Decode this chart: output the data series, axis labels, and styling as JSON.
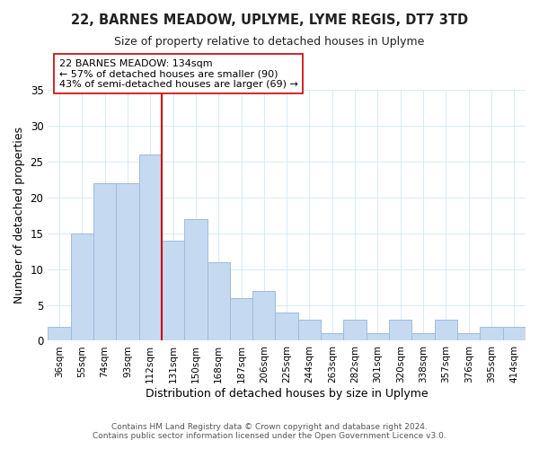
{
  "title": "22, BARNES MEADOW, UPLYME, LYME REGIS, DT7 3TD",
  "subtitle": "Size of property relative to detached houses in Uplyme",
  "xlabel": "Distribution of detached houses by size in Uplyme",
  "ylabel": "Number of detached properties",
  "bar_labels": [
    "36sqm",
    "55sqm",
    "74sqm",
    "93sqm",
    "112sqm",
    "131sqm",
    "150sqm",
    "168sqm",
    "187sqm",
    "206sqm",
    "225sqm",
    "244sqm",
    "263sqm",
    "282sqm",
    "301sqm",
    "320sqm",
    "338sqm",
    "357sqm",
    "376sqm",
    "395sqm",
    "414sqm"
  ],
  "bar_values": [
    2,
    15,
    22,
    22,
    26,
    14,
    17,
    11,
    6,
    7,
    4,
    3,
    1,
    3,
    1,
    3,
    1,
    3,
    1,
    2,
    2
  ],
  "bar_color": "#c5d9f0",
  "bar_edgecolor": "#a0bbdc",
  "vline_index": 5,
  "vline_color": "#cc0000",
  "annotation_title": "22 BARNES MEADOW: 134sqm",
  "annotation_line1": "← 57% of detached houses are smaller (90)",
  "annotation_line2": "43% of semi-detached houses are larger (69) →",
  "annotation_box_edgecolor": "#cc0000",
  "ylim": [
    0,
    35
  ],
  "yticks": [
    0,
    5,
    10,
    15,
    20,
    25,
    30,
    35
  ],
  "footer1": "Contains HM Land Registry data © Crown copyright and database right 2024.",
  "footer2": "Contains public sector information licensed under the Open Government Licence v3.0."
}
